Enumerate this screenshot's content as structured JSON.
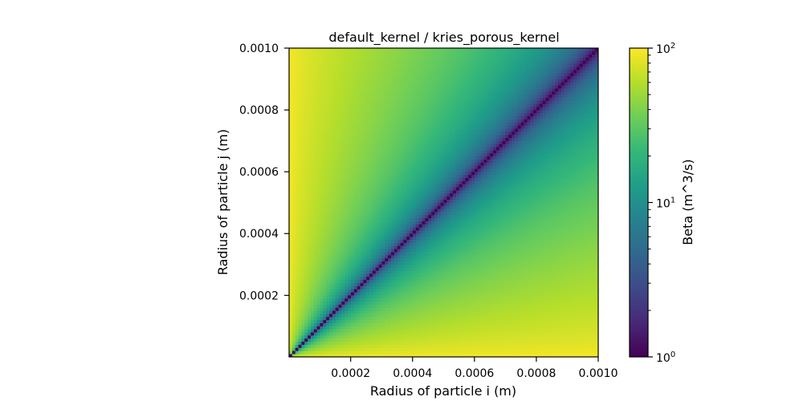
{
  "chart_data": {
    "type": "heatmap",
    "title": "default_kernel / kries_porous_kernel",
    "xlabel": "Radius of particle i (m)",
    "ylabel": "Radius of particle j (m)",
    "xlim": [
      1e-06,
      0.001
    ],
    "ylim": [
      1e-06,
      0.001
    ],
    "x_ticks": [
      {
        "value": 0.0002,
        "label": "0.0002"
      },
      {
        "value": 0.0004,
        "label": "0.0004"
      },
      {
        "value": 0.0006,
        "label": "0.0006"
      },
      {
        "value": 0.0008,
        "label": "0.0008"
      },
      {
        "value": 0.001,
        "label": "0.0010"
      }
    ],
    "y_ticks": [
      {
        "value": 0.0002,
        "label": "0.0002"
      },
      {
        "value": 0.0004,
        "label": "0.0004"
      },
      {
        "value": 0.0006,
        "label": "0.0006"
      },
      {
        "value": 0.0008,
        "label": "0.0008"
      },
      {
        "value": 0.001,
        "label": "0.0010"
      }
    ],
    "grid_size": 100,
    "approx_value_model": "Beta ratio ≈ 1 on the diagonal (radius i = radius j), rising to ≈ 100 at the far corners (smallest vs largest radius)",
    "color_scale": {
      "type": "log",
      "label": "Beta (m^3/s)",
      "vmin": 1,
      "vmax": 100,
      "colormap": "viridis",
      "ticks": [
        {
          "value": 1,
          "base": "10",
          "exp": "0"
        },
        {
          "value": 10,
          "base": "10",
          "exp": "1"
        },
        {
          "value": 100,
          "base": "10",
          "exp": "2"
        }
      ],
      "colors": [
        "#440154",
        "#482878",
        "#3e4989",
        "#31688e",
        "#26828e",
        "#1f9e89",
        "#35b779",
        "#6ece58",
        "#b5de2b",
        "#fde725"
      ]
    },
    "grid": false
  }
}
